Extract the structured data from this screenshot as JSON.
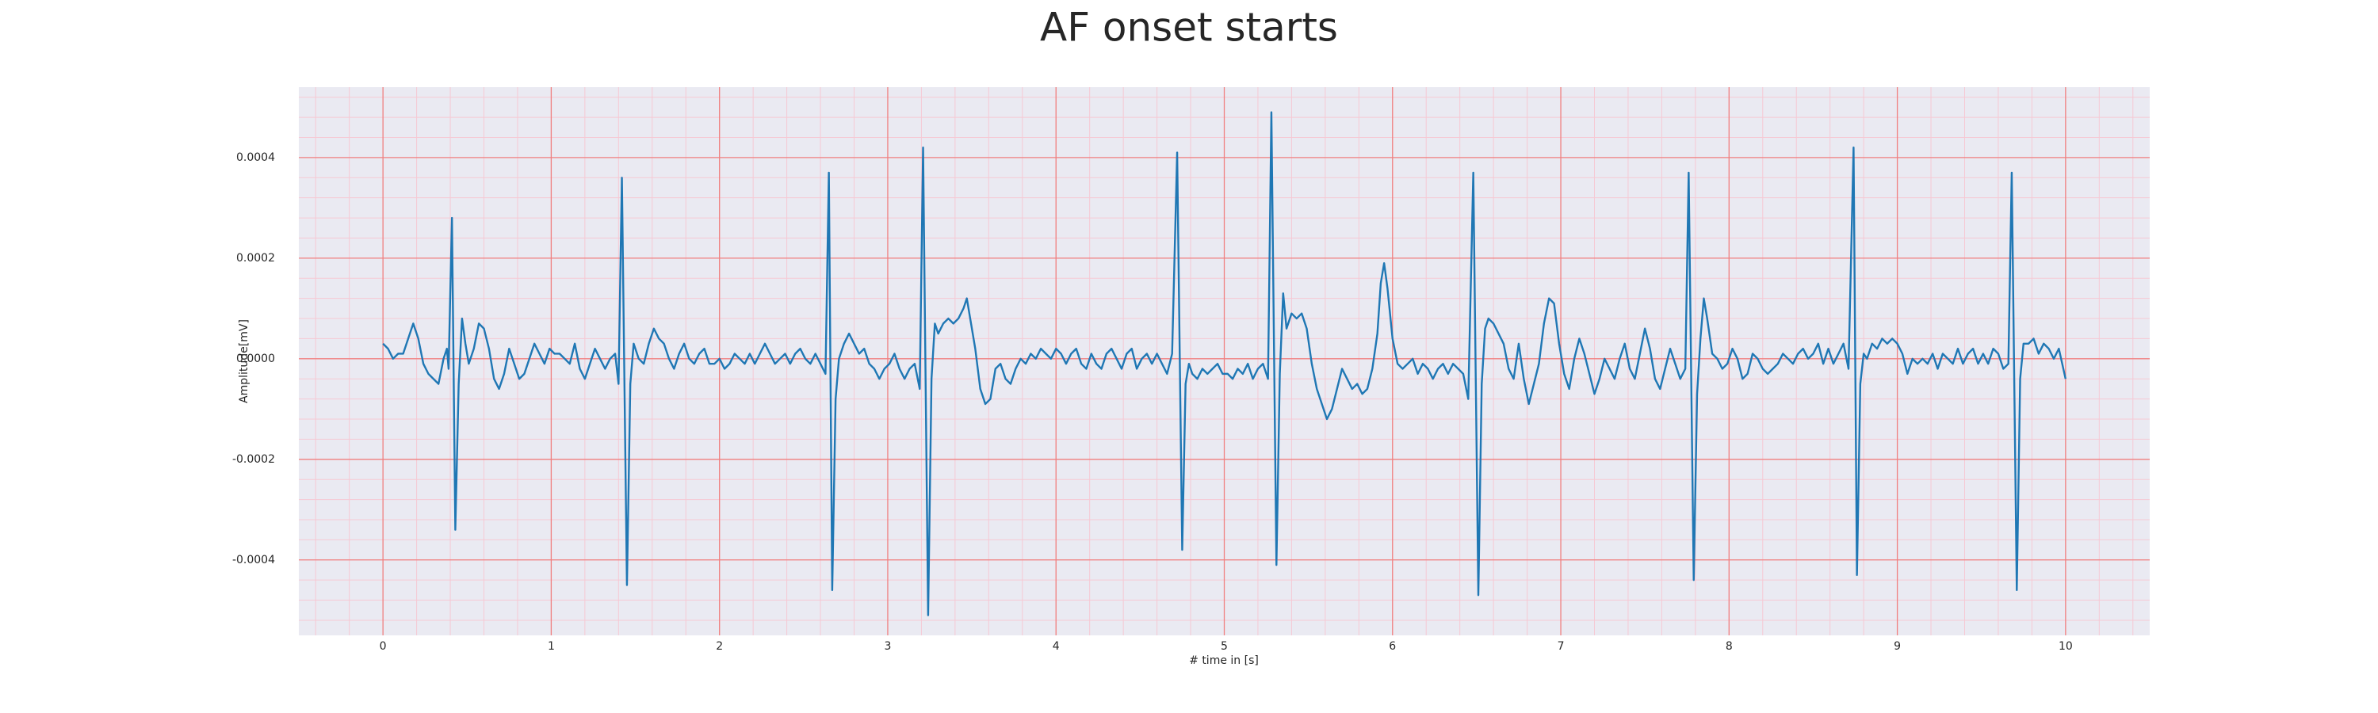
{
  "chart_data": {
    "type": "line",
    "title": "AF onset starts",
    "xlabel": "# time in [s]",
    "ylabel": "Amplitude[mV]",
    "xlim": [
      -0.5,
      10.5
    ],
    "ylim": [
      -0.00055,
      0.00054
    ],
    "xticks": [
      0,
      1,
      2,
      3,
      4,
      5,
      6,
      7,
      8,
      9,
      10
    ],
    "yticks": [
      -0.0004,
      -0.0002,
      {
        "value": 0,
        "label": "0.0000"
      },
      0.0002,
      0.0004
    ],
    "grid": true,
    "minor_grid": true,
    "grid_color": "#f08080",
    "minor_grid_color": "#f6c9d4",
    "background": "#eaeaf2",
    "series": [
      {
        "color": "#1f77b4",
        "x": [
          0,
          0.03,
          0.06,
          0.09,
          0.12,
          0.15,
          0.18,
          0.21,
          0.24,
          0.27,
          0.3,
          0.33,
          0.36,
          0.38,
          0.39,
          0.41,
          0.43,
          0.45,
          0.47,
          0.49,
          0.51,
          0.54,
          0.57,
          0.6,
          0.63,
          0.66,
          0.69,
          0.72,
          0.75,
          0.78,
          0.81,
          0.84,
          0.87,
          0.9,
          0.93,
          0.96,
          0.99,
          1.02,
          1.05,
          1.08,
          1.11,
          1.14,
          1.17,
          1.2,
          1.23,
          1.26,
          1.29,
          1.32,
          1.35,
          1.38,
          1.4,
          1.42,
          1.45,
          1.47,
          1.49,
          1.52,
          1.55,
          1.58,
          1.61,
          1.64,
          1.67,
          1.7,
          1.73,
          1.76,
          1.79,
          1.82,
          1.85,
          1.88,
          1.91,
          1.94,
          1.97,
          2,
          2.03,
          2.06,
          2.09,
          2.12,
          2.15,
          2.18,
          2.21,
          2.24,
          2.27,
          2.3,
          2.33,
          2.36,
          2.39,
          2.42,
          2.45,
          2.48,
          2.51,
          2.54,
          2.57,
          2.6,
          2.63,
          2.65,
          2.67,
          2.69,
          2.71,
          2.74,
          2.77,
          2.8,
          2.83,
          2.86,
          2.89,
          2.92,
          2.95,
          2.98,
          3.01,
          3.04,
          3.07,
          3.1,
          3.13,
          3.16,
          3.19,
          3.21,
          3.24,
          3.26,
          3.28,
          3.3,
          3.33,
          3.36,
          3.39,
          3.42,
          3.45,
          3.47,
          3.49,
          3.52,
          3.55,
          3.58,
          3.61,
          3.64,
          3.67,
          3.7,
          3.73,
          3.76,
          3.79,
          3.82,
          3.85,
          3.88,
          3.91,
          3.94,
          3.97,
          4,
          4.03,
          4.06,
          4.09,
          4.12,
          4.15,
          4.18,
          4.21,
          4.24,
          4.27,
          4.3,
          4.33,
          4.36,
          4.39,
          4.42,
          4.45,
          4.48,
          4.51,
          4.54,
          4.57,
          4.6,
          4.63,
          4.66,
          4.69,
          4.72,
          4.75,
          4.77,
          4.79,
          4.81,
          4.84,
          4.87,
          4.9,
          4.93,
          4.96,
          4.99,
          5.02,
          5.05,
          5.08,
          5.11,
          5.14,
          5.17,
          5.2,
          5.23,
          5.26,
          5.28,
          5.31,
          5.33,
          5.35,
          5.37,
          5.4,
          5.43,
          5.46,
          5.49,
          5.52,
          5.55,
          5.58,
          5.61,
          5.64,
          5.67,
          5.7,
          5.73,
          5.76,
          5.79,
          5.82,
          5.85,
          5.88,
          5.91,
          5.93,
          5.95,
          5.97,
          6,
          6.03,
          6.06,
          6.09,
          6.12,
          6.15,
          6.18,
          6.21,
          6.24,
          6.27,
          6.3,
          6.33,
          6.36,
          6.39,
          6.42,
          6.45,
          6.48,
          6.51,
          6.53,
          6.55,
          6.57,
          6.6,
          6.63,
          6.66,
          6.69,
          6.72,
          6.75,
          6.78,
          6.81,
          6.84,
          6.87,
          6.9,
          6.93,
          6.96,
          6.99,
          7.02,
          7.05,
          7.08,
          7.11,
          7.14,
          7.17,
          7.2,
          7.23,
          7.26,
          7.29,
          7.32,
          7.35,
          7.38,
          7.41,
          7.44,
          7.47,
          7.5,
          7.53,
          7.56,
          7.59,
          7.62,
          7.65,
          7.68,
          7.71,
          7.74,
          7.76,
          7.79,
          7.81,
          7.83,
          7.85,
          7.87,
          7.9,
          7.93,
          7.96,
          7.99,
          8.02,
          8.05,
          8.08,
          8.11,
          8.14,
          8.17,
          8.2,
          8.23,
          8.26,
          8.29,
          8.32,
          8.35,
          8.38,
          8.41,
          8.44,
          8.47,
          8.5,
          8.53,
          8.56,
          8.59,
          8.62,
          8.65,
          8.68,
          8.71,
          8.74,
          8.76,
          8.78,
          8.8,
          8.82,
          8.85,
          8.88,
          8.91,
          8.94,
          8.97,
          9,
          9.03,
          9.06,
          9.09,
          9.12,
          9.15,
          9.18,
          9.21,
          9.24,
          9.27,
          9.3,
          9.33,
          9.36,
          9.39,
          9.42,
          9.45,
          9.48,
          9.51,
          9.54,
          9.57,
          9.6,
          9.63,
          9.66,
          9.68,
          9.71,
          9.73,
          9.75,
          9.78,
          9.81,
          9.84,
          9.87,
          9.9,
          9.93,
          9.96,
          9.98,
          10
        ],
        "values": [
          3e-05,
          2e-05,
          0,
          1e-05,
          1e-05,
          4e-05,
          7e-05,
          4e-05,
          -1e-05,
          -3e-05,
          -4e-05,
          -5e-05,
          0,
          2e-05,
          -2e-05,
          0.00028,
          -0.00034,
          -5e-05,
          8e-05,
          3e-05,
          -1e-05,
          2e-05,
          7e-05,
          6e-05,
          2e-05,
          -4e-05,
          -6e-05,
          -3e-05,
          2e-05,
          -1e-05,
          -4e-05,
          -3e-05,
          0,
          3e-05,
          1e-05,
          -1e-05,
          2e-05,
          1e-05,
          1e-05,
          0,
          -1e-05,
          3e-05,
          -2e-05,
          -4e-05,
          -1e-05,
          2e-05,
          0,
          -2e-05,
          0,
          1e-05,
          -5e-05,
          0.00036,
          -0.00045,
          -5e-05,
          3e-05,
          0,
          -1e-05,
          3e-05,
          6e-05,
          4e-05,
          3e-05,
          0,
          -2e-05,
          1e-05,
          3e-05,
          0,
          -1e-05,
          1e-05,
          2e-05,
          -1e-05,
          -1e-05,
          0,
          -2e-05,
          -1e-05,
          1e-05,
          0,
          -1e-05,
          1e-05,
          -1e-05,
          1e-05,
          3e-05,
          1e-05,
          -1e-05,
          0,
          1e-05,
          -1e-05,
          1e-05,
          2e-05,
          0,
          -1e-05,
          1e-05,
          -1e-05,
          -3e-05,
          0.00037,
          -0.00046,
          -8e-05,
          0,
          3e-05,
          5e-05,
          3e-05,
          1e-05,
          2e-05,
          -1e-05,
          -2e-05,
          -4e-05,
          -2e-05,
          -1e-05,
          1e-05,
          -2e-05,
          -4e-05,
          -2e-05,
          -1e-05,
          -6e-05,
          0.00042,
          -0.00051,
          -4e-05,
          7e-05,
          5e-05,
          7e-05,
          8e-05,
          7e-05,
          8e-05,
          0.0001,
          0.00012,
          8e-05,
          2e-05,
          -6e-05,
          -9e-05,
          -8e-05,
          -2e-05,
          -1e-05,
          -4e-05,
          -5e-05,
          -2e-05,
          0,
          -1e-05,
          1e-05,
          0,
          2e-05,
          1e-05,
          0,
          2e-05,
          1e-05,
          -1e-05,
          1e-05,
          2e-05,
          -1e-05,
          -2e-05,
          1e-05,
          -1e-05,
          -2e-05,
          1e-05,
          2e-05,
          0,
          -2e-05,
          1e-05,
          2e-05,
          -2e-05,
          0,
          1e-05,
          -1e-05,
          1e-05,
          -1e-05,
          -3e-05,
          1e-05,
          0.00041,
          -0.00038,
          -5e-05,
          -1e-05,
          -3e-05,
          -4e-05,
          -2e-05,
          -3e-05,
          -2e-05,
          -1e-05,
          -3e-05,
          -3e-05,
          -4e-05,
          -2e-05,
          -3e-05,
          -1e-05,
          -4e-05,
          -2e-05,
          -1e-05,
          -4e-05,
          0.00049,
          -0.00041,
          -3e-05,
          0.00013,
          6e-05,
          9e-05,
          8e-05,
          9e-05,
          6e-05,
          -1e-05,
          -6e-05,
          -9e-05,
          -0.00012,
          -0.0001,
          -6e-05,
          -2e-05,
          -4e-05,
          -6e-05,
          -5e-05,
          -7e-05,
          -6e-05,
          -2e-05,
          5e-05,
          0.00015,
          0.00019,
          0.00014,
          4e-05,
          -1e-05,
          -2e-05,
          -1e-05,
          0,
          -3e-05,
          -1e-05,
          -2e-05,
          -4e-05,
          -2e-05,
          -1e-05,
          -3e-05,
          -1e-05,
          -2e-05,
          -3e-05,
          -8e-05,
          0.00037,
          -0.00047,
          -5e-05,
          6e-05,
          8e-05,
          7e-05,
          5e-05,
          3e-05,
          -2e-05,
          -4e-05,
          3e-05,
          -4e-05,
          -9e-05,
          -5e-05,
          -1e-05,
          7e-05,
          0.00012,
          0.00011,
          3e-05,
          -3e-05,
          -6e-05,
          0,
          4e-05,
          1e-05,
          -3e-05,
          -7e-05,
          -4e-05,
          0,
          -2e-05,
          -4e-05,
          0,
          3e-05,
          -2e-05,
          -4e-05,
          1e-05,
          6e-05,
          2e-05,
          -4e-05,
          -6e-05,
          -2e-05,
          2e-05,
          -1e-05,
          -4e-05,
          -2e-05,
          0.00037,
          -0.00044,
          -7e-05,
          4e-05,
          0.00012,
          8e-05,
          1e-05,
          0,
          -2e-05,
          -1e-05,
          2e-05,
          0,
          -4e-05,
          -3e-05,
          1e-05,
          0,
          -2e-05,
          -3e-05,
          -2e-05,
          -1e-05,
          1e-05,
          0,
          -1e-05,
          1e-05,
          2e-05,
          0,
          1e-05,
          3e-05,
          -1e-05,
          2e-05,
          -1e-05,
          1e-05,
          3e-05,
          -2e-05,
          0.00042,
          -0.00043,
          -5e-05,
          1e-05,
          0,
          3e-05,
          2e-05,
          4e-05,
          3e-05,
          4e-05,
          3e-05,
          1e-05,
          -3e-05,
          0,
          -1e-05,
          0,
          -1e-05,
          1e-05,
          -2e-05,
          1e-05,
          0,
          -1e-05,
          2e-05,
          -1e-05,
          1e-05,
          2e-05,
          -1e-05,
          1e-05,
          -1e-05,
          2e-05,
          1e-05,
          -2e-05,
          -1e-05,
          0.00037,
          -0.00046,
          -4e-05,
          3e-05,
          3e-05,
          4e-05,
          1e-05,
          3e-05,
          2e-05,
          0,
          2e-05,
          -1e-05,
          -4e-05
        ]
      }
    ]
  }
}
